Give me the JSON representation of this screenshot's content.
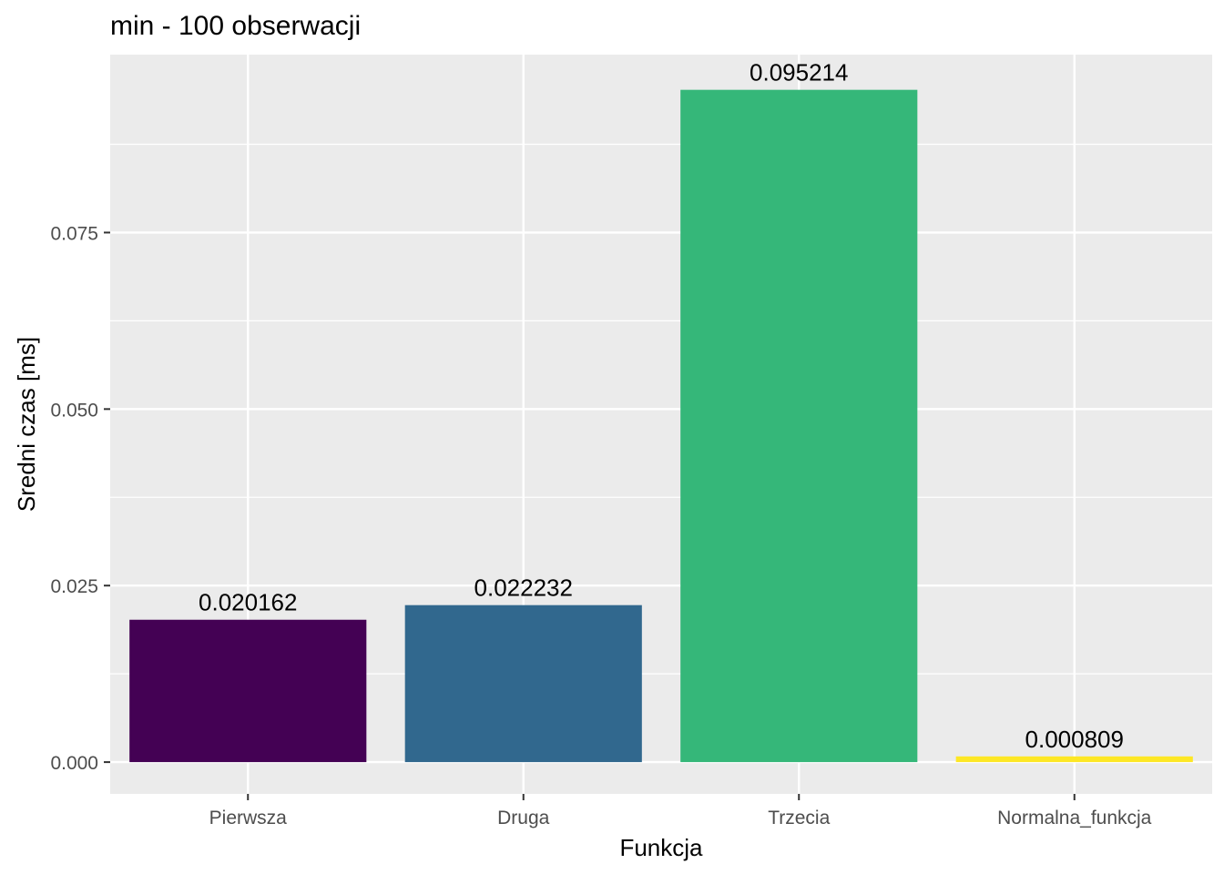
{
  "chart_data": {
    "type": "bar",
    "title": "min - 100 obserwacji",
    "xlabel": "Funkcja",
    "ylabel": "Sredni czas [ms]",
    "categories": [
      "Pierwsza",
      "Druga",
      "Trzecia",
      "Normalna_funkcja"
    ],
    "values": [
      0.020162,
      0.022232,
      0.095214,
      0.000809
    ],
    "data_labels": [
      "0.020162",
      "0.022232",
      "0.095214",
      "0.000809"
    ],
    "colors": [
      "#440154",
      "#31688E",
      "#35B779",
      "#FDE725"
    ],
    "yticks": [
      0.0,
      0.025,
      0.05,
      0.075
    ],
    "ytick_labels": [
      "0.000",
      "0.025",
      "0.050",
      "0.075"
    ],
    "ylim": [
      -0.0045,
      0.1002
    ],
    "grid": true,
    "legend": "none"
  }
}
